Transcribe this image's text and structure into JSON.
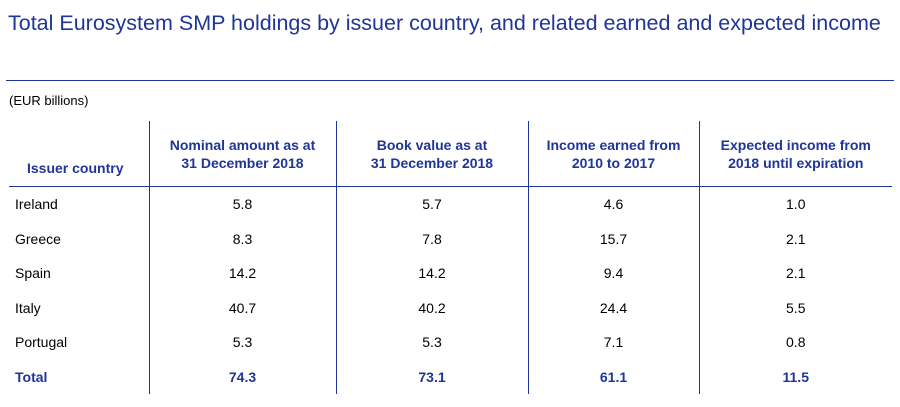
{
  "title": "Total Eurosystem SMP holdings by issuer country, and related earned and expected income",
  "unit": "(EUR billions)",
  "columns": {
    "country": "Issuer country",
    "nominal": [
      "Nominal amount as at",
      "31 December 2018"
    ],
    "book": [
      "Book value as at",
      "31 December 2018"
    ],
    "earned": [
      "Income earned from",
      "2010 to 2017"
    ],
    "expected": [
      "Expected income from",
      "2018 until expiration"
    ]
  },
  "rows": [
    {
      "country": "Ireland",
      "nominal": "5.8",
      "book": "5.7",
      "earned": "4.6",
      "expected": "1.0"
    },
    {
      "country": "Greece",
      "nominal": "8.3",
      "book": "7.8",
      "earned": "15.7",
      "expected": "2.1"
    },
    {
      "country": "Spain",
      "nominal": "14.2",
      "book": "14.2",
      "earned": "9.4",
      "expected": "2.1"
    },
    {
      "country": "Italy",
      "nominal": "40.7",
      "book": "40.2",
      "earned": "24.4",
      "expected": "5.5"
    },
    {
      "country": "Portugal",
      "nominal": "5.3",
      "book": "5.3",
      "earned": "7.1",
      "expected": "0.8"
    }
  ],
  "total": {
    "country": "Total",
    "nominal": "74.3",
    "book": "73.1",
    "earned": "61.1",
    "expected": "11.5"
  },
  "colors": {
    "accent": "#1f3597",
    "text": "#000000"
  }
}
